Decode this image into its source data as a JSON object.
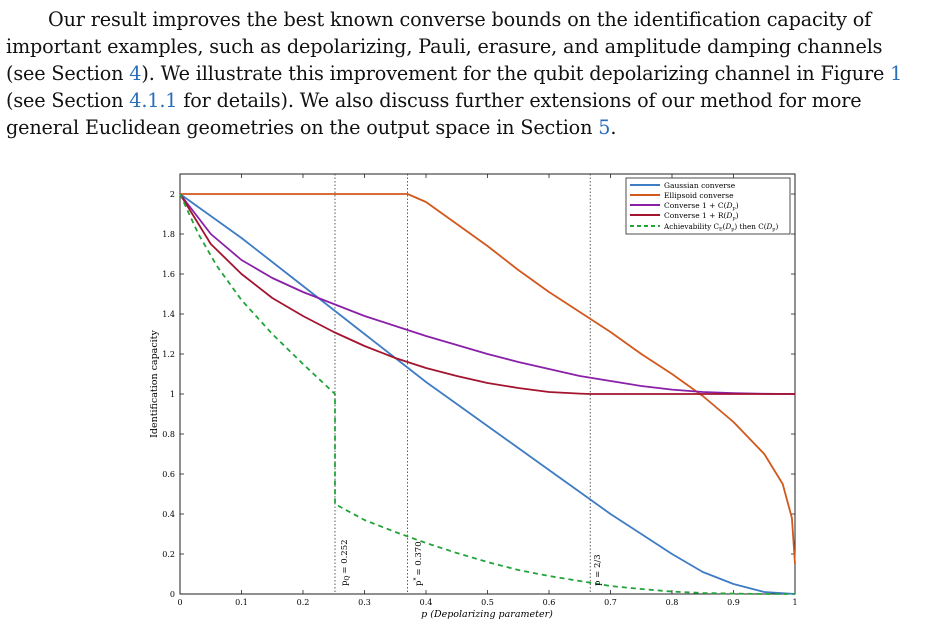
{
  "paragraph": {
    "line1": "Our result improves the best known converse bounds on the identification capacity of",
    "line2": "important examples, such as depolarizing, Pauli, erasure, and amplitude damping channels",
    "line3_a": "(see Section ",
    "line3_ref1": "4",
    "line3_b": "). We illustrate this improvement for the qubit depolarizing channel in Figure ",
    "line3_ref2": "1",
    "line4_a": "(see Section ",
    "line4_ref": "4.1.1",
    "line4_b": " for details). We also discuss further extensions of our method for more",
    "line5_a": "general Euclidean geometries on the output space in Section ",
    "line5_ref": "5",
    "line5_b": "."
  },
  "chart_data": {
    "type": "line",
    "xlabel": "p (Depolarizing parameter)",
    "ylabel": "Identification capacity",
    "xlim": [
      0,
      1
    ],
    "ylim": [
      0,
      2.1
    ],
    "x_ticks": [
      "0",
      "0.1",
      "0.2",
      "0.3",
      "0.4",
      "0.5",
      "0.6",
      "0.7",
      "0.8",
      "0.9",
      "1"
    ],
    "y_ticks": [
      "0",
      "0.2",
      "0.4",
      "0.6",
      "0.8",
      "1",
      "1.2",
      "1.4",
      "1.6",
      "1.8",
      "2"
    ],
    "grid": false,
    "legend_position": "top-right",
    "series": [
      {
        "name": "Gaussian converse",
        "color": "#3e7cc4",
        "style": "solid",
        "x": [
          0,
          0.05,
          0.1,
          0.15,
          0.2,
          0.25,
          0.3,
          0.35,
          0.4,
          0.45,
          0.5,
          0.55,
          0.6,
          0.65,
          0.7,
          0.75,
          0.8,
          0.85,
          0.9,
          0.95,
          1.0
        ],
        "y": [
          2.0,
          1.89,
          1.78,
          1.66,
          1.54,
          1.42,
          1.3,
          1.18,
          1.06,
          0.95,
          0.84,
          0.73,
          0.62,
          0.51,
          0.4,
          0.3,
          0.2,
          0.11,
          0.05,
          0.01,
          0.0
        ]
      },
      {
        "name": "Ellipsoid converse",
        "color": "#d2581c",
        "style": "solid",
        "x": [
          0,
          0.1,
          0.2,
          0.3,
          0.37,
          0.4,
          0.45,
          0.5,
          0.55,
          0.6,
          0.65,
          0.7,
          0.75,
          0.8,
          0.85,
          0.9,
          0.95,
          0.98,
          0.995,
          1.0
        ],
        "y": [
          2.0,
          2.0,
          2.0,
          2.0,
          2.0,
          1.96,
          1.85,
          1.74,
          1.62,
          1.51,
          1.41,
          1.31,
          1.2,
          1.1,
          0.99,
          0.86,
          0.7,
          0.55,
          0.38,
          0.15
        ]
      },
      {
        "name": "Converse 1 + C(D_p)",
        "color": "#8a20a8",
        "style": "solid",
        "x": [
          0,
          0.05,
          0.1,
          0.15,
          0.2,
          0.25,
          0.3,
          0.35,
          0.4,
          0.45,
          0.5,
          0.55,
          0.6,
          0.65,
          0.7,
          0.75,
          0.8,
          0.85,
          0.9,
          0.95,
          1.0
        ],
        "y": [
          2.0,
          1.8,
          1.67,
          1.58,
          1.51,
          1.45,
          1.39,
          1.34,
          1.29,
          1.245,
          1.2,
          1.16,
          1.125,
          1.09,
          1.065,
          1.04,
          1.022,
          1.01,
          1.004,
          1.001,
          1.0
        ]
      },
      {
        "name": "Converse 1 + R(D_p)",
        "color": "#a3142f",
        "style": "solid",
        "x": [
          0,
          0.05,
          0.1,
          0.15,
          0.2,
          0.25,
          0.3,
          0.35,
          0.4,
          0.45,
          0.5,
          0.55,
          0.6,
          0.65,
          0.667,
          0.7,
          0.8,
          0.9,
          1.0
        ],
        "y": [
          2.0,
          1.75,
          1.6,
          1.48,
          1.39,
          1.31,
          1.24,
          1.18,
          1.13,
          1.09,
          1.055,
          1.03,
          1.01,
          1.002,
          1.0,
          1.0,
          1.0,
          1.0,
          1.0
        ]
      },
      {
        "name": "Achievability C_E(D_p) then C(D_p)",
        "color": "#22a33a",
        "style": "dashed",
        "x": [
          0,
          0.03,
          0.06,
          0.1,
          0.15,
          0.2,
          0.252,
          0.252,
          0.3,
          0.35,
          0.4,
          0.45,
          0.5,
          0.55,
          0.6,
          0.65,
          0.7,
          0.75,
          0.8,
          0.85,
          0.9,
          0.95,
          1.0
        ],
        "y": [
          2.0,
          1.8,
          1.64,
          1.47,
          1.3,
          1.15,
          1.0,
          0.45,
          0.37,
          0.31,
          0.255,
          0.205,
          0.16,
          0.12,
          0.09,
          0.065,
          0.04,
          0.025,
          0.012,
          0.005,
          0.002,
          0.0,
          0.0
        ]
      }
    ],
    "vertical_lines": [
      0.252,
      0.37,
      0.667
    ],
    "annotations": {
      "a1": "p",
      "a1sub": "Q",
      "a1val": "= 0.252",
      "a2": "p",
      "a2sup": "*",
      "a2val": "= 0.370",
      "a3": "p = ",
      "a3val": "2/3"
    },
    "legend": {
      "l1": "Gaussian converse",
      "l2": "Ellipsoid converse",
      "l3_a": "Converse 1 + C(",
      "l3_b": "D",
      "l3_c": "p",
      "l3_d": ")",
      "l4_a": "Converse 1 + R(",
      "l4_b": "D",
      "l4_c": "p",
      "l4_d": ")",
      "l5_a": "Achievability C",
      "l5_b": "E",
      "l5_c": "(",
      "l5_d": "D",
      "l5_e": "p",
      "l5_f": ") then C(",
      "l5_g": "D",
      "l5_h": "p",
      "l5_i": ")"
    }
  }
}
